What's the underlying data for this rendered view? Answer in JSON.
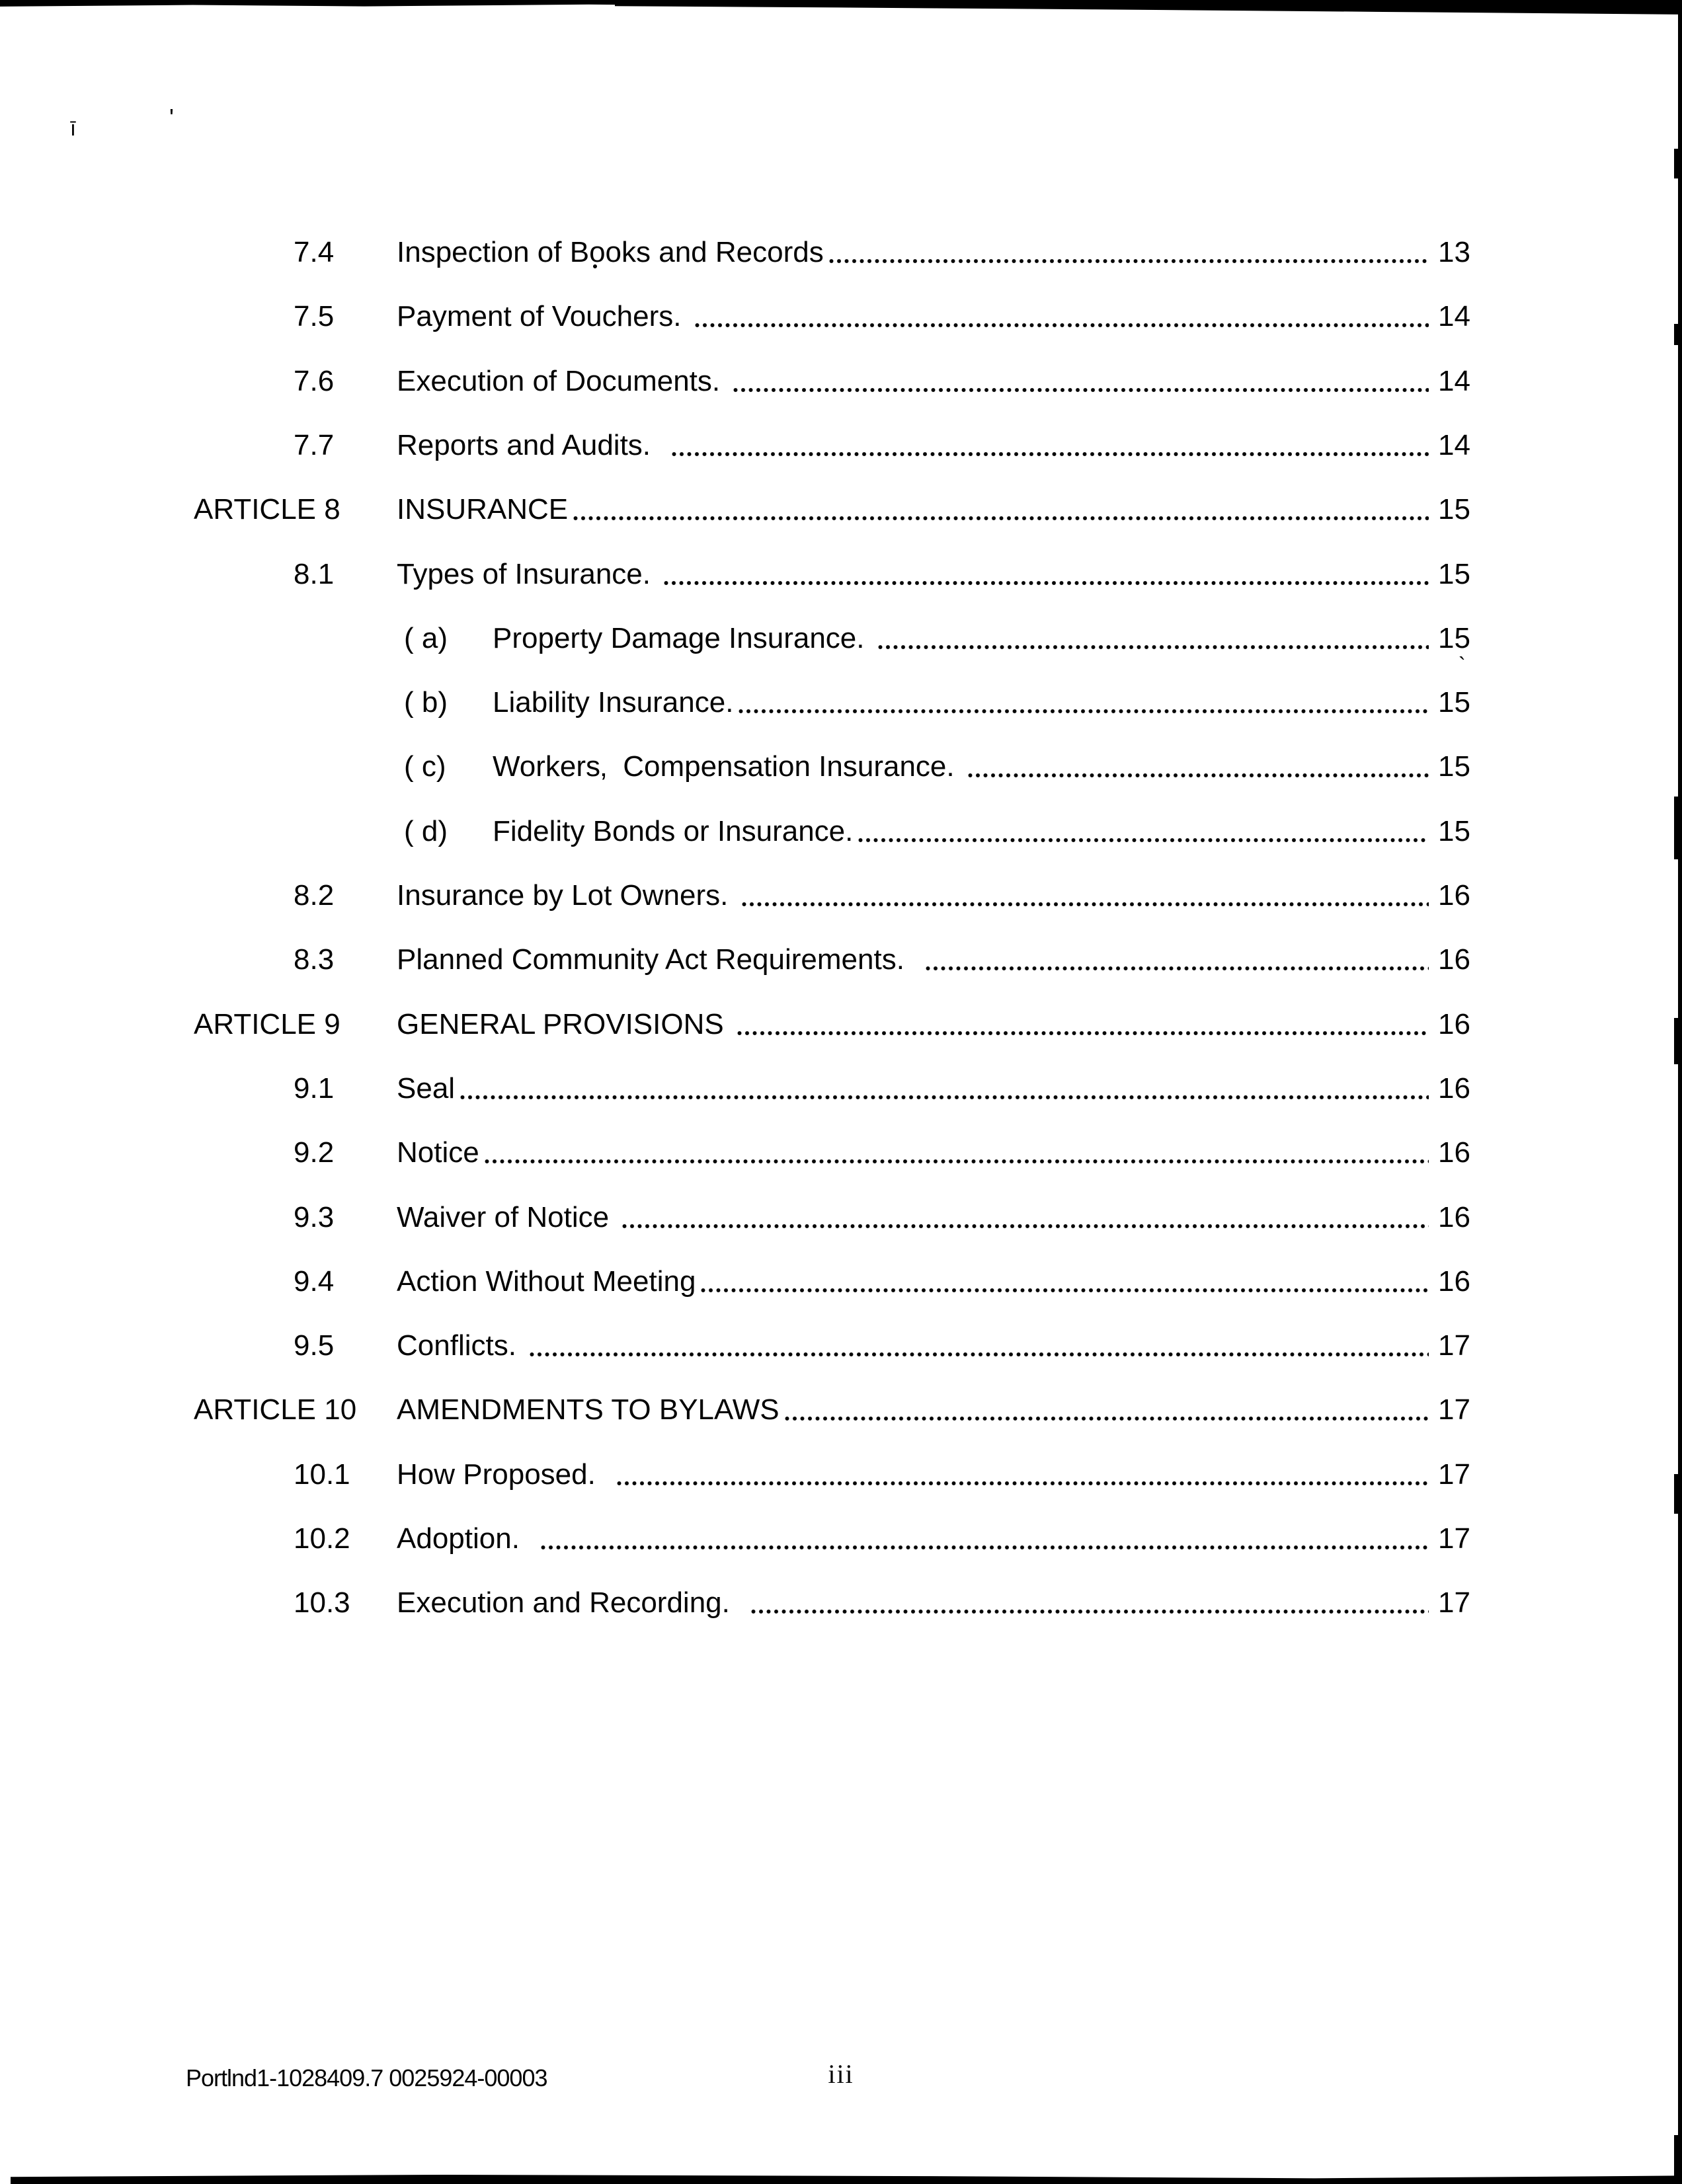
{
  "toc": {
    "entries": [
      {
        "type": "section",
        "num": "7.4",
        "label": "Inspection of Books and Records",
        "page": "13"
      },
      {
        "type": "section",
        "num": "7.5",
        "label": "Payment of Vouchers. ",
        "page": "14"
      },
      {
        "type": "section",
        "num": "7.6",
        "label": "Execution of Documents. ",
        "page": "14"
      },
      {
        "type": "section",
        "num": "7.7",
        "label": "Reports and Audits.  ",
        "page": "14"
      },
      {
        "type": "article",
        "num": "ARTICLE 8",
        "label": "INSURANCE",
        "page": "15"
      },
      {
        "type": "section",
        "num": "8.1",
        "label": "Types of Insurance. ",
        "page": "15"
      },
      {
        "type": "sub",
        "num": "( a)",
        "label": "Property Damage Insurance. ",
        "page": "15"
      },
      {
        "type": "sub",
        "num": "( b)",
        "label": "Liability Insurance.",
        "page": "15"
      },
      {
        "type": "sub",
        "num": "( c)",
        "label": "Workers‚  Compensation Insurance. ",
        "page": "15"
      },
      {
        "type": "sub",
        "num": "( d)",
        "label": "Fidelity Bonds or Insurance.",
        "page": "15"
      },
      {
        "type": "section",
        "num": "8.2",
        "label": "Insurance by Lot Owners. ",
        "page": "16"
      },
      {
        "type": "section",
        "num": "8.3",
        "label": "Planned Community Act Requirements.  ",
        "page": "16"
      },
      {
        "type": "article",
        "num": "ARTICLE 9",
        "label": "GENERAL PROVISIONS ",
        "page": "16"
      },
      {
        "type": "section",
        "num": "9.1",
        "label": "Seal",
        "page": "16"
      },
      {
        "type": "section",
        "num": "9.2",
        "label": "Notice",
        "page": "16"
      },
      {
        "type": "section",
        "num": "9.3",
        "label": "Waiver of Notice ",
        "page": "16"
      },
      {
        "type": "section",
        "num": "9.4",
        "label": "Action Without Meeting",
        "page": "16"
      },
      {
        "type": "section",
        "num": "9.5",
        "label": "Conflicts. ",
        "page": "17"
      },
      {
        "type": "article",
        "num": "ARTICLE 10",
        "label": "AMENDMENTS TO BYLAWS",
        "page": "17"
      },
      {
        "type": "section",
        "num": "10.1",
        "label": "How Proposed.  ",
        "page": "17"
      },
      {
        "type": "section",
        "num": "10.2",
        "label": "Adoption.  ",
        "page": "17"
      },
      {
        "type": "section",
        "num": "10.3",
        "label": "Execution and Recording.  ",
        "page": "17"
      }
    ]
  },
  "footer": {
    "doc_id": "Portlnd1-1028409.7 0025924-00003",
    "page_number": "iii"
  },
  "artifacts": {
    "mark1": "ī",
    "mark2": "'",
    "mark3": "`"
  }
}
